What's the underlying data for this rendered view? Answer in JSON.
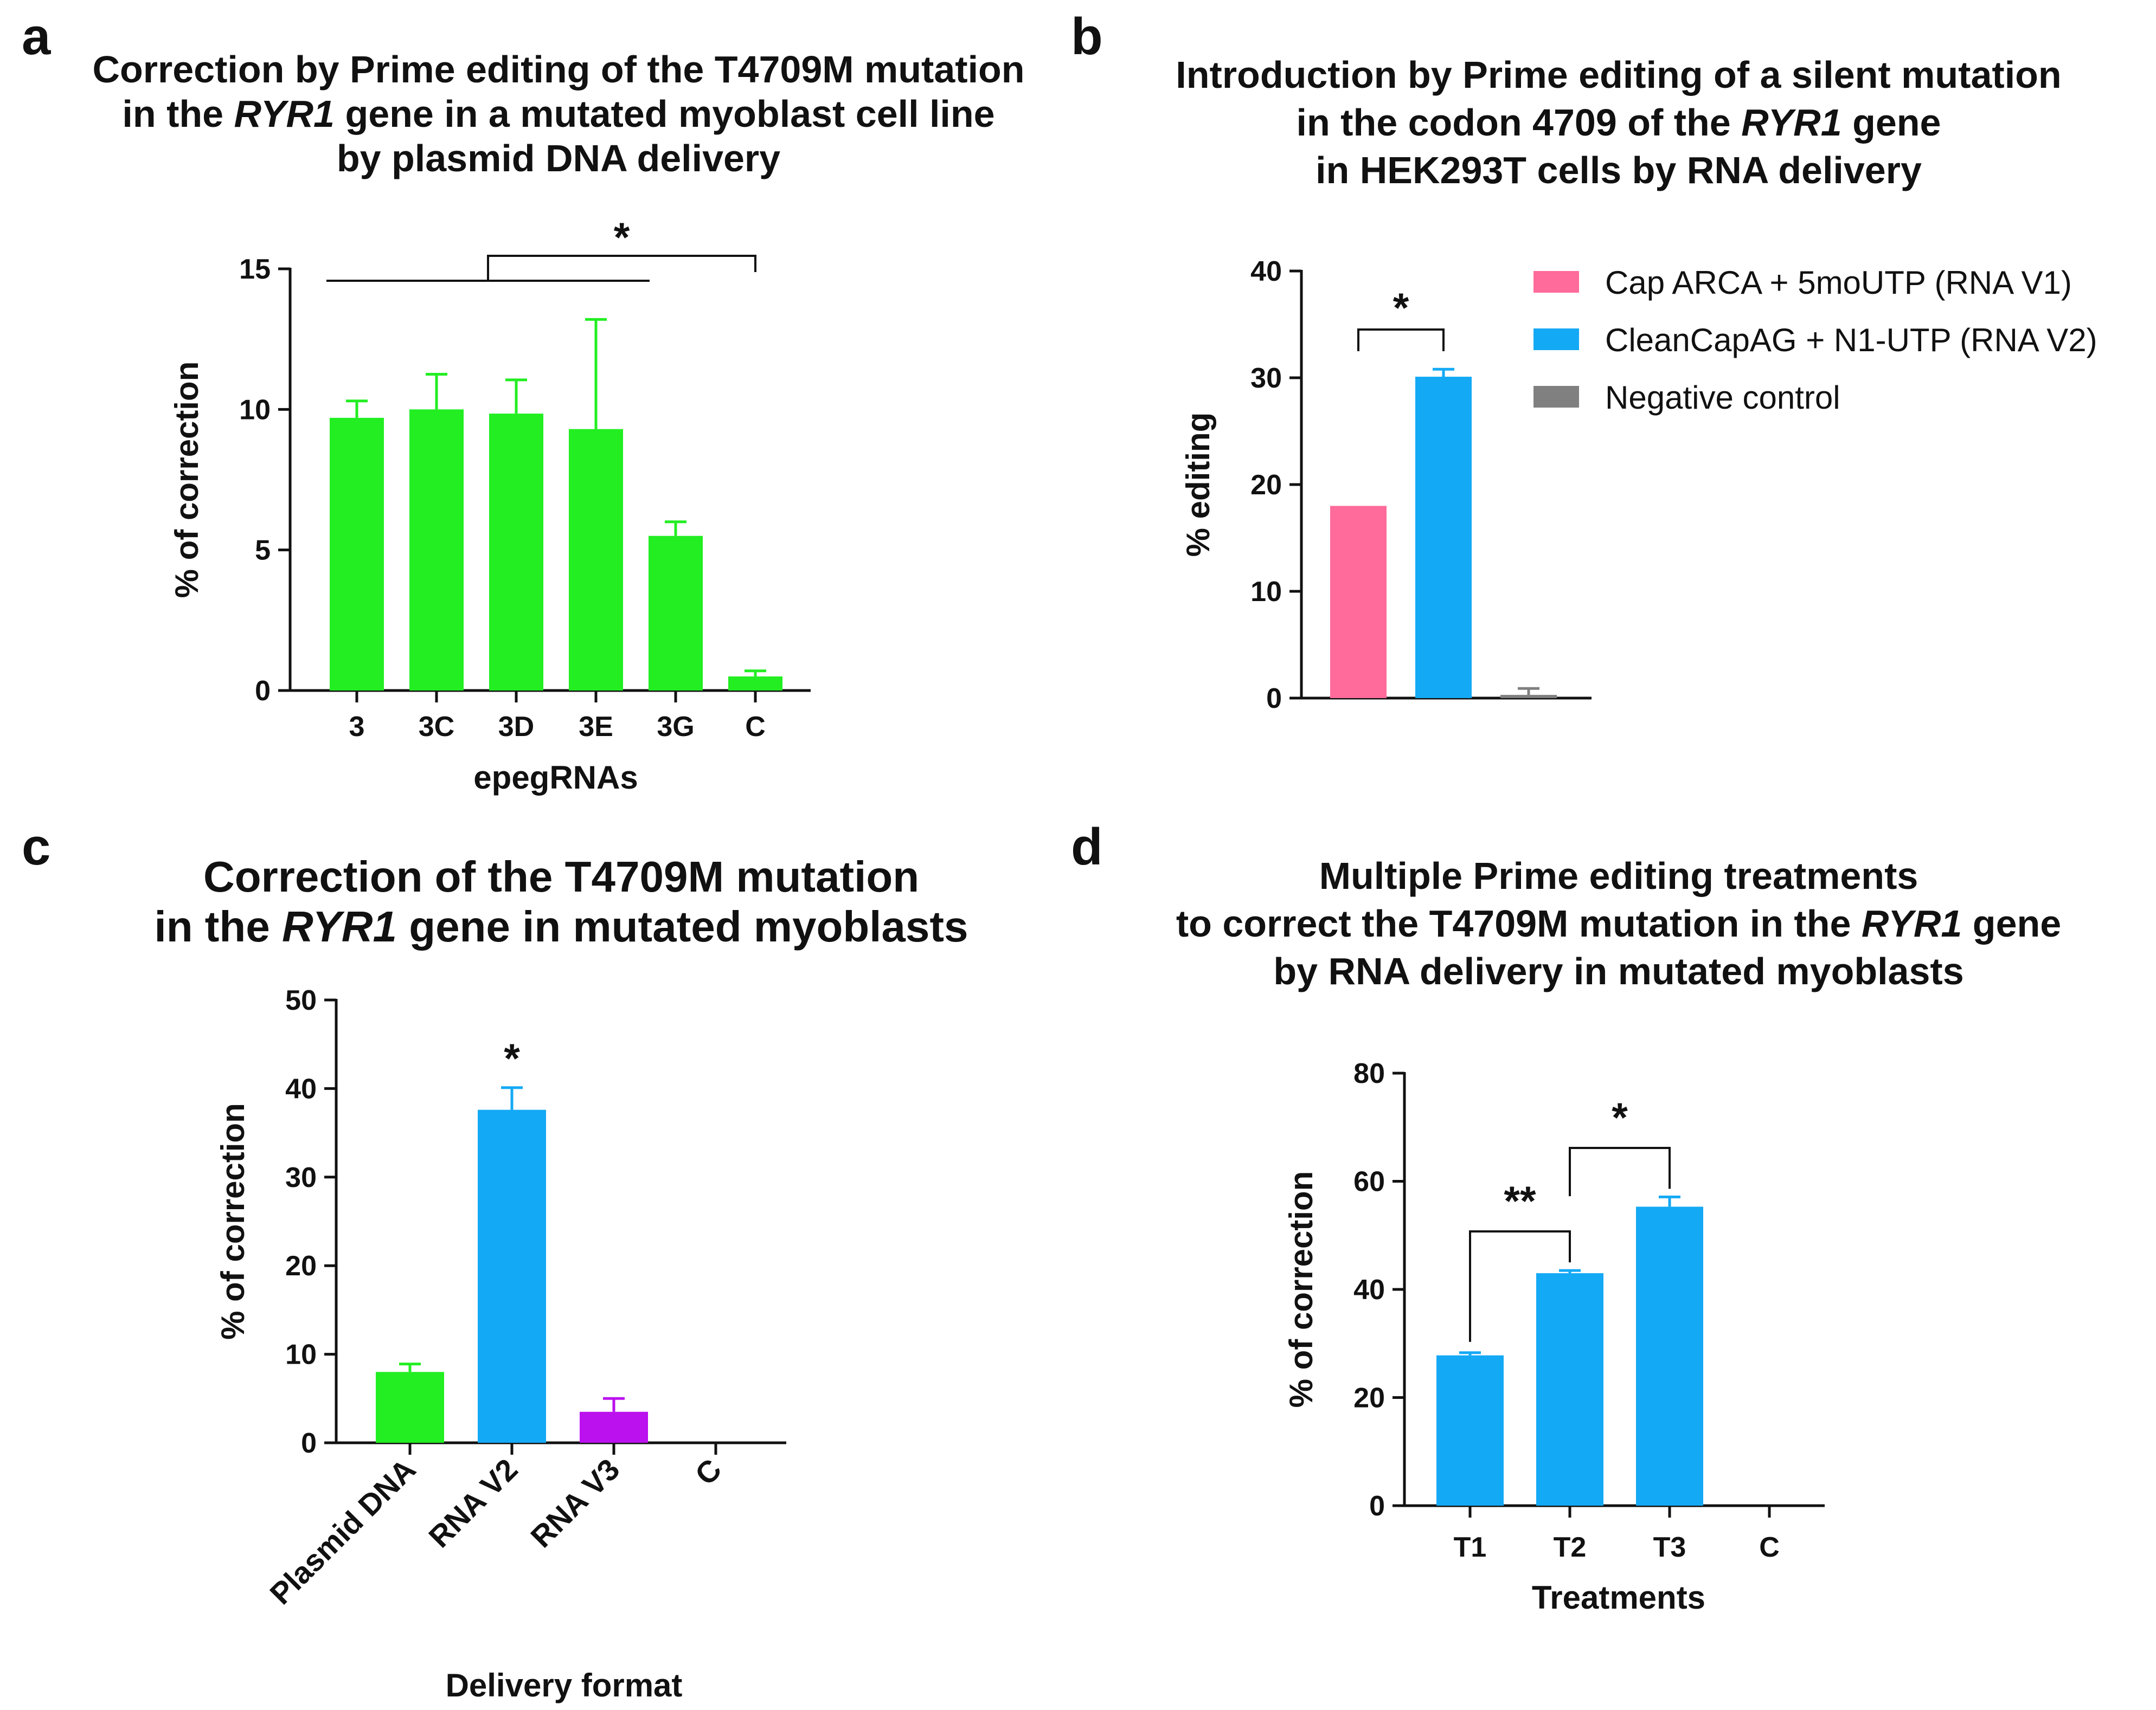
{
  "panels": [
    {
      "id": "a",
      "letter": "a",
      "title_lines": [
        [
          {
            "t": "Correction by Prime editing of the T4709M mutation"
          }
        ],
        [
          {
            "t": "in the "
          },
          {
            "t": "RYR1",
            "i": true
          },
          {
            "t": " gene in a mutated myoblast cell line"
          }
        ],
        [
          {
            "t": "by plasmid DNA delivery"
          }
        ]
      ],
      "xlabel": "epegRNAs",
      "ylabel": "% of correction",
      "y_ticks": [
        "0",
        "5",
        "10",
        "15"
      ],
      "significance": [
        "*"
      ]
    },
    {
      "id": "b",
      "letter": "b",
      "title_lines": [
        [
          {
            "t": "Introduction by Prime editing of a silent mutation"
          }
        ],
        [
          {
            "t": "in the codon 4709 of the "
          },
          {
            "t": "RYR1",
            "i": true
          },
          {
            "t": " gene"
          }
        ],
        [
          {
            "t": "in HEK293T cells by RNA delivery"
          }
        ]
      ],
      "xlabel": "",
      "ylabel": "% editing",
      "y_ticks": [
        "0",
        "10",
        "20",
        "30",
        "40"
      ],
      "legend": [
        {
          "label": "Cap ARCA + 5moUTP (RNA V1)",
          "color": "#FF6B9A"
        },
        {
          "label": "CleanCapAG + N1-UTP (RNA V2)",
          "color": "#14A9F5"
        },
        {
          "label": "Negative control",
          "color": "#808080"
        }
      ],
      "significance": [
        "*"
      ]
    },
    {
      "id": "c",
      "letter": "c",
      "title_lines": [
        [
          {
            "t": "Correction of the T4709M mutation"
          }
        ],
        [
          {
            "t": "in the "
          },
          {
            "t": "RYR1",
            "i": true
          },
          {
            "t": " gene in mutated myoblasts"
          }
        ]
      ],
      "xlabel": "Delivery format",
      "ylabel": "% of correction",
      "y_ticks": [
        "0",
        "10",
        "20",
        "30",
        "40",
        "50"
      ],
      "significance": [
        "*"
      ]
    },
    {
      "id": "d",
      "letter": "d",
      "title_lines": [
        [
          {
            "t": "Multiple Prime editing treatments"
          }
        ],
        [
          {
            "t": "to correct the T4709M mutation in the "
          },
          {
            "t": "RYR1",
            "i": true
          },
          {
            "t": " gene"
          }
        ],
        [
          {
            "t": "by RNA delivery in mutated myoblasts"
          }
        ]
      ],
      "xlabel": "Treatments",
      "ylabel": "% of correction",
      "y_ticks": [
        "0",
        "20",
        "40",
        "60",
        "80"
      ],
      "significance": [
        "**",
        "*"
      ]
    }
  ],
  "chart_data": [
    {
      "type": "bar",
      "panel": "a",
      "categories": [
        "3",
        "3C",
        "3D",
        "3E",
        "3G",
        "C"
      ],
      "values": [
        9.7,
        10.0,
        9.85,
        9.3,
        5.5,
        0.5
      ],
      "error": [
        0.6,
        1.25,
        1.2,
        3.9,
        0.5,
        0.2
      ],
      "colors": [
        "#22EE22",
        "#22EE22",
        "#22EE22",
        "#22EE22",
        "#22EE22",
        "#22EE22"
      ],
      "xlabel": "epegRNAs",
      "ylabel": "% of correction",
      "ylim": [
        0,
        15
      ],
      "grid": false
    },
    {
      "type": "bar",
      "panel": "b",
      "categories": [
        "",
        "",
        ""
      ],
      "values": [
        18.0,
        30.1,
        0.3
      ],
      "error": [
        0,
        0.7,
        0.6
      ],
      "colors": [
        "#FF6B9A",
        "#14A9F5",
        "#808080"
      ],
      "series_names": [
        "Cap ARCA + 5moUTP (RNA V1)",
        "CleanCapAG + N1-UTP (RNA V2)",
        "Negative control"
      ],
      "xlabel": "",
      "ylabel": "% editing",
      "ylim": [
        0,
        40
      ],
      "legend_position": "top-right",
      "grid": false
    },
    {
      "type": "bar",
      "panel": "c",
      "categories": [
        "Plasmid DNA",
        "RNA V2",
        "RNA V3",
        "C"
      ],
      "values": [
        8.0,
        37.6,
        3.5,
        0
      ],
      "error": [
        0.9,
        2.5,
        1.5,
        0
      ],
      "colors": [
        "#22EE22",
        "#14A9F5",
        "#BB11EE",
        "#22EE22"
      ],
      "xlabel": "Delivery format",
      "ylabel": "% of correction",
      "ylim": [
        0,
        50
      ],
      "grid": false
    },
    {
      "type": "bar",
      "panel": "d",
      "categories": [
        "T1",
        "T2",
        "T3",
        "C"
      ],
      "values": [
        27.8,
        43.0,
        55.3,
        0
      ],
      "error": [
        0.5,
        0.5,
        1.8,
        0
      ],
      "colors": [
        "#14A9F5",
        "#14A9F5",
        "#14A9F5",
        "#14A9F5"
      ],
      "xlabel": "Treatments",
      "ylabel": "% of correction",
      "ylim": [
        0,
        80
      ],
      "grid": false
    }
  ]
}
